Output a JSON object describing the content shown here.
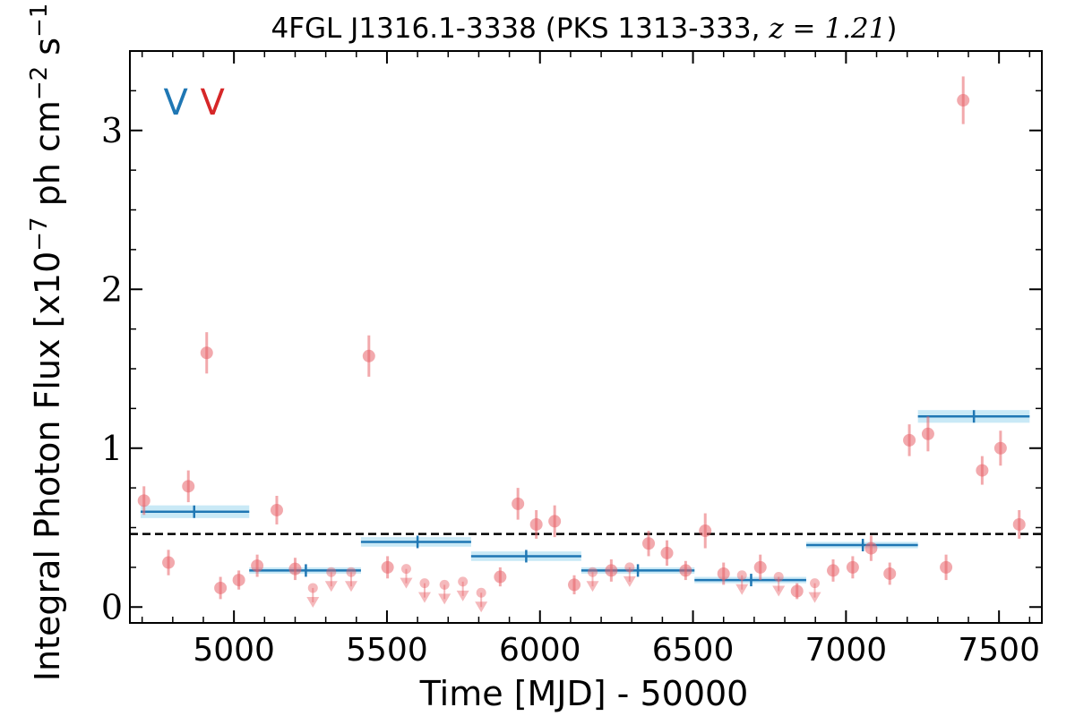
{
  "chart_data": {
    "type": "scatter",
    "title": "4FGL J1316.1-3338 (PKS 1313-333, ",
    "title_z": "z = 1.21",
    "title_close": ")",
    "xlabel": "Time [MJD] - 50000",
    "ylabel": "Integral Photon Flux [x10",
    "ylabel_exp1": "−7",
    "ylabel_mid": " ph cm",
    "ylabel_exp2": "−2",
    "ylabel_end": " s",
    "ylabel_exp3": "−1",
    "ylabel_close": "]",
    "xlim": [
      4660,
      7640
    ],
    "ylim": [
      -0.1,
      3.5
    ],
    "xticks": [
      5000,
      5500,
      6000,
      6500,
      7000,
      7500
    ],
    "xtick_labels": [
      "5000",
      "5500",
      "6000",
      "6500",
      "7000",
      "7500"
    ],
    "yticks": [
      0,
      1,
      2,
      3
    ],
    "ytick_labels": [
      "0",
      "1",
      "2",
      "3"
    ],
    "baseline_flux": 0.46,
    "markers": [
      {
        "text": "V",
        "x": 4810,
        "color": "#1f77b4"
      },
      {
        "text": "V",
        "x": 4930,
        "color": "#d62728"
      }
    ],
    "series": [
      {
        "color": "#e8636a",
        "points": [
          {
            "x": 4706,
            "y": 0.67,
            "err": 0.09
          },
          {
            "x": 4786,
            "y": 0.28,
            "err": 0.08
          },
          {
            "x": 4851,
            "y": 0.76,
            "err": 0.1
          },
          {
            "x": 4911,
            "y": 1.6,
            "err": 0.13
          },
          {
            "x": 4956,
            "y": 0.12,
            "err": 0.07
          },
          {
            "x": 5016,
            "y": 0.17,
            "err": 0.06
          },
          {
            "x": 5076,
            "y": 0.26,
            "err": 0.07
          },
          {
            "x": 5140,
            "y": 0.61,
            "err": 0.09
          },
          {
            "x": 5200,
            "y": 0.24,
            "err": 0.07
          },
          {
            "x": 5441,
            "y": 1.58,
            "err": 0.13
          },
          {
            "x": 5502,
            "y": 0.25,
            "err": 0.07
          },
          {
            "x": 5870,
            "y": 0.19,
            "err": 0.06
          },
          {
            "x": 5928,
            "y": 0.65,
            "err": 0.1
          },
          {
            "x": 5988,
            "y": 0.52,
            "err": 0.09
          },
          {
            "x": 6048,
            "y": 0.54,
            "err": 0.1
          },
          {
            "x": 6112,
            "y": 0.14,
            "err": 0.06
          },
          {
            "x": 6233,
            "y": 0.23,
            "err": 0.07
          },
          {
            "x": 6355,
            "y": 0.4,
            "err": 0.08
          },
          {
            "x": 6415,
            "y": 0.34,
            "err": 0.08
          },
          {
            "x": 6476,
            "y": 0.23,
            "err": 0.06
          },
          {
            "x": 6540,
            "y": 0.48,
            "err": 0.11
          },
          {
            "x": 6600,
            "y": 0.21,
            "err": 0.07
          },
          {
            "x": 6720,
            "y": 0.25,
            "err": 0.08
          },
          {
            "x": 6840,
            "y": 0.1,
            "err": 0.05
          },
          {
            "x": 6958,
            "y": 0.23,
            "err": 0.07
          },
          {
            "x": 7022,
            "y": 0.25,
            "err": 0.07
          },
          {
            "x": 7082,
            "y": 0.37,
            "err": 0.08
          },
          {
            "x": 7143,
            "y": 0.21,
            "err": 0.07
          },
          {
            "x": 7207,
            "y": 1.05,
            "err": 0.1
          },
          {
            "x": 7268,
            "y": 1.09,
            "err": 0.11
          },
          {
            "x": 7327,
            "y": 0.25,
            "err": 0.08
          },
          {
            "x": 7383,
            "y": 3.19,
            "err": 0.15
          },
          {
            "x": 7445,
            "y": 0.86,
            "err": 0.09
          },
          {
            "x": 7505,
            "y": 1.0,
            "err": 0.11
          },
          {
            "x": 7566,
            "y": 0.52,
            "err": 0.09
          }
        ],
        "upper_limits": [
          {
            "x": 5258,
            "y": 0.12
          },
          {
            "x": 5318,
            "y": 0.22
          },
          {
            "x": 5383,
            "y": 0.22
          },
          {
            "x": 5563,
            "y": 0.24
          },
          {
            "x": 5623,
            "y": 0.15
          },
          {
            "x": 5688,
            "y": 0.14
          },
          {
            "x": 5748,
            "y": 0.16
          },
          {
            "x": 5808,
            "y": 0.09
          },
          {
            "x": 6172,
            "y": 0.22
          },
          {
            "x": 6293,
            "y": 0.25
          },
          {
            "x": 6660,
            "y": 0.2
          },
          {
            "x": 6780,
            "y": 0.19
          },
          {
            "x": 6898,
            "y": 0.15
          }
        ]
      },
      {
        "color": "#1f77b4",
        "band_color": "#87ceeb",
        "bins": [
          {
            "x0": 4695,
            "x1": 5050,
            "y": 0.6,
            "err": 0.04,
            "xc": 4870
          },
          {
            "x0": 5050,
            "x1": 5415,
            "y": 0.23,
            "err": 0.02,
            "xc": 5235
          },
          {
            "x0": 5415,
            "x1": 5775,
            "y": 0.41,
            "err": 0.03,
            "xc": 5600
          },
          {
            "x0": 5775,
            "x1": 6135,
            "y": 0.32,
            "err": 0.03,
            "xc": 5955
          },
          {
            "x0": 6135,
            "x1": 6505,
            "y": 0.23,
            "err": 0.02,
            "xc": 6320
          },
          {
            "x0": 6505,
            "x1": 6870,
            "y": 0.17,
            "err": 0.02,
            "xc": 6690
          },
          {
            "x0": 6870,
            "x1": 7235,
            "y": 0.39,
            "err": 0.02,
            "xc": 7055
          },
          {
            "x0": 7235,
            "x1": 7600,
            "y": 1.2,
            "err": 0.04,
            "xc": 7418
          }
        ]
      }
    ],
    "grid": false
  }
}
